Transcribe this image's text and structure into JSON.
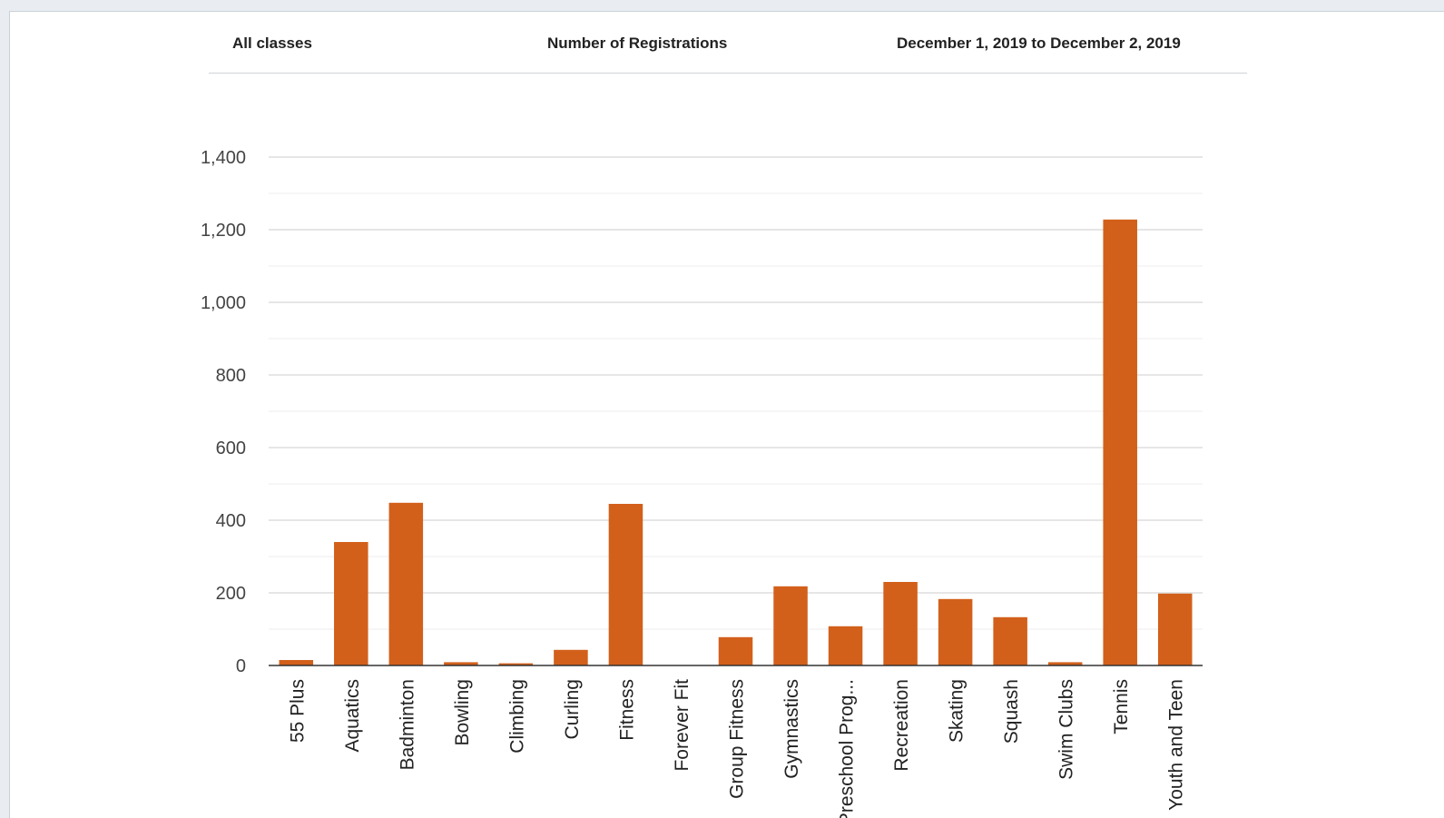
{
  "header": {
    "left": "All classes",
    "center": "Number of Registrations",
    "right": "December 1, 2019 to December 2, 2019"
  },
  "chart_data": {
    "type": "bar",
    "title": "",
    "xlabel": "",
    "ylabel": "",
    "ylim": [
      0,
      1400
    ],
    "yticks": [
      {
        "value": 0,
        "label": "0"
      },
      {
        "value": 200,
        "label": "200"
      },
      {
        "value": 400,
        "label": "400"
      },
      {
        "value": 600,
        "label": "600"
      },
      {
        "value": 800,
        "label": "800"
      },
      {
        "value": 1000,
        "label": "1,000"
      },
      {
        "value": 1200,
        "label": "1,200"
      },
      {
        "value": 1400,
        "label": "1,400"
      }
    ],
    "minor_grid_step": 100,
    "grid": true,
    "legend": "none",
    "bar_color": "#d2601b",
    "categories": [
      "55 Plus",
      "Aquatics",
      "Badminton",
      "Bowling",
      "Climbing",
      "Curling",
      "Fitness",
      "Forever Fit",
      "Group Fitness",
      "Gymnastics",
      "Preschool Prog...",
      "Recreation",
      "Skating",
      "Squash",
      "Swim Clubs",
      "Tennis",
      "Youth and Teen"
    ],
    "values": [
      15,
      340,
      448,
      9,
      6,
      43,
      445,
      0,
      78,
      218,
      108,
      230,
      183,
      133,
      9,
      1228,
      198
    ]
  }
}
